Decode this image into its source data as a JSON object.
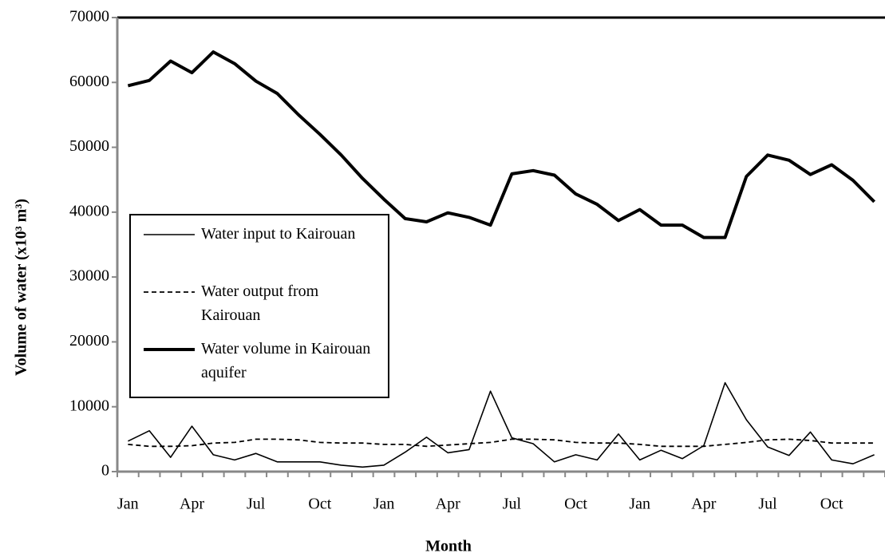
{
  "chart_data": {
    "type": "line",
    "x_label": "Month",
    "y_label": "Volume of water (x10³ m³)",
    "categories": [
      "Jan",
      null,
      null,
      "Apr",
      null,
      null,
      "Jul",
      null,
      null,
      "Oct",
      null,
      null,
      "Jan",
      null,
      null,
      "Apr",
      null,
      null,
      "Jul",
      null,
      null,
      "Oct",
      null,
      null,
      "Jan",
      null,
      null,
      "Apr",
      null,
      null,
      "Jul",
      null,
      null,
      "Oct",
      null,
      null
    ],
    "series": [
      {
        "name": "Water input to Kairouan",
        "color": "#000000",
        "style": "thin",
        "values": [
          4700,
          6300,
          2200,
          7000,
          2600,
          1800,
          2800,
          1500,
          1500,
          1500,
          1000,
          700,
          1000,
          3000,
          5300,
          2900,
          3400,
          12400,
          5200,
          4300,
          1500,
          2600,
          1800,
          5800,
          1800,
          3300,
          2000,
          4000,
          13700,
          8000,
          3800,
          2500,
          6100,
          1800,
          1200,
          2600
        ]
      },
      {
        "name": "Water output from Kairouan",
        "color": "#000000",
        "style": "dashed",
        "values": [
          4200,
          3900,
          3900,
          4000,
          4400,
          4500,
          5000,
          5000,
          4900,
          4500,
          4400,
          4400,
          4200,
          4200,
          3900,
          4100,
          4300,
          4500,
          5000,
          5000,
          4900,
          4500,
          4400,
          4400,
          4200,
          3900,
          3900,
          3900,
          4200,
          4500,
          4900,
          5000,
          4800,
          4400,
          4400,
          4400
        ]
      },
      {
        "name": "Water volume in Kairouan aquifer",
        "color": "#000000",
        "style": "thick",
        "values": [
          59500,
          60300,
          63300,
          61500,
          64700,
          62900,
          60200,
          58300,
          55000,
          52000,
          48800,
          45200,
          42000,
          39000,
          38500,
          39900,
          39200,
          38000,
          45900,
          46400,
          45700,
          42800,
          41200,
          38700,
          40400,
          38000,
          38000,
          36100,
          36100,
          45500,
          48800,
          48000,
          45800,
          47300,
          44900,
          41600
        ]
      }
    ],
    "ylim": [
      0,
      70000
    ],
    "yticks": [
      0,
      10000,
      20000,
      30000,
      40000,
      50000,
      60000,
      70000
    ],
    "legend": "left"
  }
}
